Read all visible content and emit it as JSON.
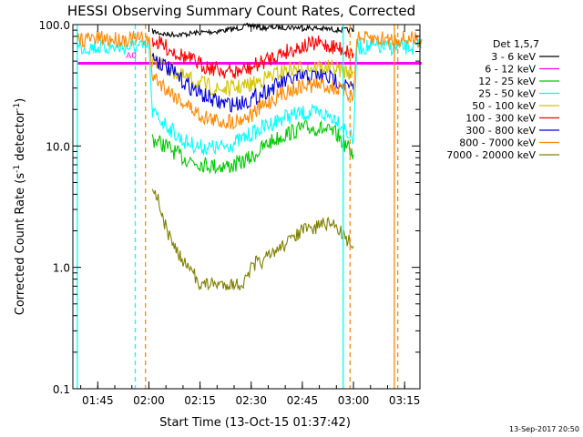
{
  "chart_data": {
    "type": "line",
    "title": "HESSI Observing Summary Count Rates, Corrected",
    "xlabel": "Start Time (13-Oct-15 01:37:42)",
    "ylabel_main": "Corrected Count Rate (s",
    "ylabel_sup1": "-1",
    "ylabel_mid": " detector",
    "ylabel_sup2": "-1",
    "ylabel_end": ")",
    "y_scale": "log",
    "ylim": [
      0.1,
      100
    ],
    "xlim": [
      "01:37:42",
      "03:19:30"
    ],
    "x_ticks": [
      {
        "label": "01:45",
        "t": "01:45"
      },
      {
        "label": "02:00",
        "t": "02:00"
      },
      {
        "label": "02:15",
        "t": "02:15"
      },
      {
        "label": "02:30",
        "t": "02:30"
      },
      {
        "label": "02:45",
        "t": "02:45"
      },
      {
        "label": "03:00",
        "t": "03:00"
      },
      {
        "label": "03:15",
        "t": "03:15"
      }
    ],
    "y_ticks": [
      {
        "label": "0.1",
        "v": 0.1
      },
      {
        "label": "1.0",
        "v": 1.0
      },
      {
        "label": "10.0",
        "v": 10.0
      },
      {
        "label": "100.0",
        "v": 100.0
      }
    ],
    "legend_title": "Det 1,5,7",
    "legend_position": "right",
    "footer_date": "13-Sep-2017 20:50",
    "series": [
      {
        "name": "3 - 6 keV",
        "color": "#000000",
        "points": [
          [
            "02:01",
            88
          ],
          [
            "02:05",
            83
          ],
          [
            "02:10",
            83
          ],
          [
            "02:15",
            86
          ],
          [
            "02:20",
            88
          ],
          [
            "02:25",
            92
          ],
          [
            "02:28",
            96
          ],
          [
            "02:30",
            99
          ],
          [
            "02:33",
            94
          ],
          [
            "02:37",
            95
          ],
          [
            "02:42",
            95
          ],
          [
            "02:47",
            94
          ],
          [
            "02:52",
            92
          ],
          [
            "02:57",
            90
          ],
          [
            "03:00",
            90
          ]
        ]
      },
      {
        "name": "6 - 12 keV",
        "color": "#ff00ff",
        "points": [
          [
            "01:39",
            48
          ],
          [
            "03:20",
            48
          ]
        ]
      },
      {
        "name": "12 - 25 keV",
        "color": "#00cc00",
        "points": [
          [
            "02:01",
            11.5
          ],
          [
            "02:05",
            10
          ],
          [
            "02:10",
            8.0
          ],
          [
            "02:15",
            7.2
          ],
          [
            "02:20",
            6.8
          ],
          [
            "02:25",
            6.9
          ],
          [
            "02:30",
            8.0
          ],
          [
            "02:35",
            10.5
          ],
          [
            "02:40",
            12.5
          ],
          [
            "02:45",
            14.0
          ],
          [
            "02:50",
            14.0
          ],
          [
            "02:55",
            12.5
          ],
          [
            "03:00",
            8.5
          ]
        ]
      },
      {
        "name": "25 - 50 keV",
        "color": "#00ffff",
        "points": [
          [
            "01:39",
            65
          ],
          [
            "02:00",
            65
          ],
          [
            "02:01",
            19
          ],
          [
            "02:05",
            15
          ],
          [
            "02:10",
            11
          ],
          [
            "02:15",
            9.8
          ],
          [
            "02:20",
            9.6
          ],
          [
            "02:25",
            10.5
          ],
          [
            "02:30",
            12.5
          ],
          [
            "02:35",
            15
          ],
          [
            "02:40",
            17.5
          ],
          [
            "02:45",
            18.5
          ],
          [
            "02:50",
            18.5
          ],
          [
            "02:55",
            17
          ],
          [
            "03:00",
            11
          ],
          [
            "03:01",
            65
          ],
          [
            "03:20",
            65
          ]
        ]
      },
      {
        "name": "50 - 100 keV",
        "color": "#d4c400",
        "points": [
          [
            "02:01",
            52
          ],
          [
            "02:05",
            45
          ],
          [
            "02:10",
            37
          ],
          [
            "02:15",
            33
          ],
          [
            "02:20",
            29
          ],
          [
            "02:25",
            30
          ],
          [
            "02:30",
            32
          ],
          [
            "02:35",
            37
          ],
          [
            "02:40",
            42
          ],
          [
            "02:45",
            44
          ],
          [
            "02:50",
            45
          ],
          [
            "02:55",
            43
          ],
          [
            "03:00",
            40
          ]
        ]
      },
      {
        "name": "100 - 300 keV",
        "color": "#ff0000",
        "points": [
          [
            "02:01",
            75
          ],
          [
            "02:05",
            65
          ],
          [
            "02:10",
            55
          ],
          [
            "02:15",
            47
          ],
          [
            "02:20",
            43
          ],
          [
            "02:25",
            40
          ],
          [
            "02:30",
            44
          ],
          [
            "02:35",
            52
          ],
          [
            "02:40",
            60
          ],
          [
            "02:45",
            66
          ],
          [
            "02:50",
            70
          ],
          [
            "02:55",
            65
          ],
          [
            "03:00",
            58
          ]
        ]
      },
      {
        "name": "300 - 800 keV",
        "color": "#0000dd",
        "points": [
          [
            "02:01",
            55
          ],
          [
            "02:05",
            45
          ],
          [
            "02:10",
            34
          ],
          [
            "02:15",
            27
          ],
          [
            "02:20",
            23
          ],
          [
            "02:25",
            22
          ],
          [
            "02:30",
            24
          ],
          [
            "02:35",
            29
          ],
          [
            "02:40",
            34
          ],
          [
            "02:45",
            37
          ],
          [
            "02:50",
            38
          ],
          [
            "02:55",
            35
          ],
          [
            "03:00",
            29
          ]
        ]
      },
      {
        "name": "800 - 7000 keV",
        "color": "#ff8800",
        "points": [
          [
            "01:39",
            76
          ],
          [
            "02:00",
            76
          ],
          [
            "02:01",
            38
          ],
          [
            "02:05",
            30
          ],
          [
            "02:10",
            23
          ],
          [
            "02:15",
            18
          ],
          [
            "02:20",
            16
          ],
          [
            "02:25",
            16
          ],
          [
            "02:30",
            18
          ],
          [
            "02:35",
            23
          ],
          [
            "02:40",
            28
          ],
          [
            "02:45",
            31
          ],
          [
            "02:50",
            32
          ],
          [
            "02:55",
            30
          ],
          [
            "03:00",
            26
          ],
          [
            "03:01",
            76
          ],
          [
            "03:20",
            76
          ]
        ]
      },
      {
        "name": "7000 - 20000 keV",
        "color": "#808000",
        "points": [
          [
            "02:01",
            4.6
          ],
          [
            "02:03",
            3.5
          ],
          [
            "02:04",
            2.5
          ],
          [
            "02:06",
            1.8
          ],
          [
            "02:08",
            1.4
          ],
          [
            "02:10",
            1.1
          ],
          [
            "02:12",
            0.95
          ],
          [
            "02:15",
            0.75
          ],
          [
            "02:20",
            0.75
          ],
          [
            "02:25",
            0.75
          ],
          [
            "02:28",
            0.75
          ],
          [
            "02:30",
            1.0
          ],
          [
            "02:35",
            1.2
          ],
          [
            "02:40",
            1.6
          ],
          [
            "02:45",
            2.0
          ],
          [
            "02:50",
            2.2
          ],
          [
            "02:55",
            2.2
          ],
          [
            "03:00",
            1.5
          ]
        ]
      }
    ],
    "annotations": [
      {
        "text": "A0",
        "t": "01:58",
        "v": 53,
        "color": "#ff00ff"
      },
      {
        "text": "N",
        "t": "01:58",
        "v": 68,
        "color": "#00ffff"
      }
    ],
    "vertical_markers": [
      {
        "t": "01:39",
        "color": "#00ffff",
        "style": "solid"
      },
      {
        "t": "01:56",
        "color": "#00ffff",
        "style": "dashed"
      },
      {
        "t": "01:59",
        "color": "#ff8800",
        "style": "dashed"
      },
      {
        "t": "02:57",
        "color": "#00ffff",
        "style": "solid"
      },
      {
        "t": "02:59",
        "color": "#ff8800",
        "style": "dashed"
      },
      {
        "t": "03:12",
        "color": "#ff8800",
        "style": "solid"
      },
      {
        "t": "03:13",
        "color": "#ff8800",
        "style": "dashed"
      }
    ]
  }
}
